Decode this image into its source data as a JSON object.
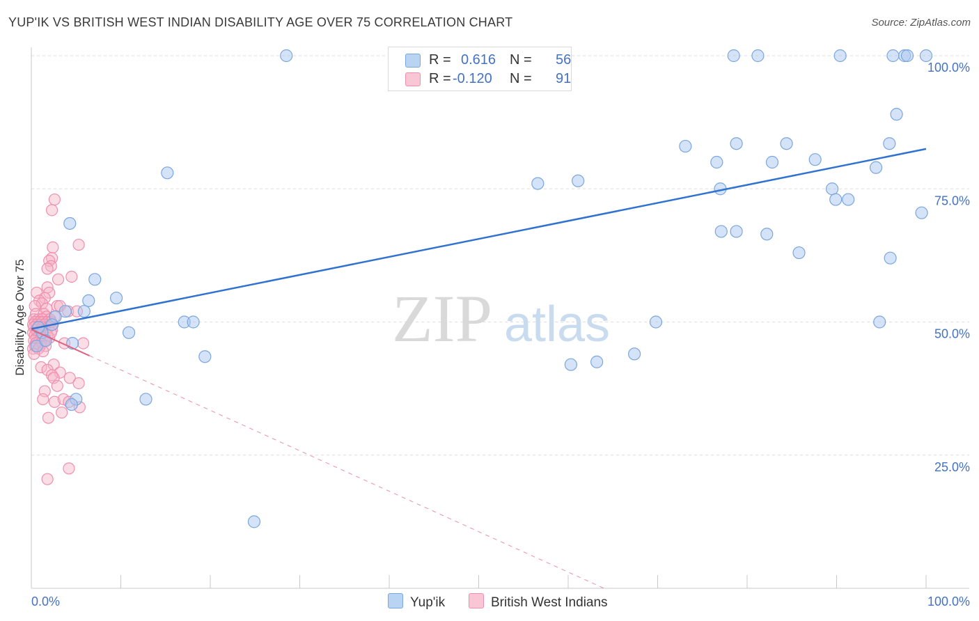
{
  "title": "YUP'IK VS BRITISH WEST INDIAN DISABILITY AGE OVER 75 CORRELATION CHART",
  "source": "Source: ZipAtlas.com",
  "watermark": {
    "zip": "ZIP",
    "atlas": "atlas"
  },
  "legend": {
    "series1": {
      "r_label": "R =",
      "r_value": "0.616",
      "n_label": "N =",
      "n_value": "56"
    },
    "series2": {
      "r_label": "R =",
      "r_value": "-0.120",
      "n_label": "N =",
      "n_value": "91"
    }
  },
  "bottom_legend": {
    "series1": "Yup'ik",
    "series2": "British West Indians"
  },
  "colors": {
    "blue_fill": "#a9c8f0",
    "blue_stroke": "#7aa6de",
    "blue_line": "#2f72cf",
    "pink_fill": "#f6b4c8",
    "pink_stroke": "#ee8fae",
    "pink_line": "#e4607f",
    "axis_text": "#4472c4",
    "grid": "#dddddd"
  },
  "chart_data": {
    "type": "scatter",
    "title": "YUP'IK VS BRITISH WEST INDIAN DISABILITY AGE OVER 75 CORRELATION CHART",
    "xlabel": "",
    "ylabel": "Disability Age Over 75",
    "xlim": [
      0,
      100
    ],
    "ylim": [
      0,
      102
    ],
    "x_tick_labels": [
      "0.0%",
      "100.0%"
    ],
    "y_tick_values": [
      25,
      50,
      75,
      100
    ],
    "y_tick_labels": [
      "25.0%",
      "50.0%",
      "75.0%",
      "100.0%"
    ],
    "series": [
      {
        "name": "Yup'ik",
        "r": 0.616,
        "n": 56,
        "points": [
          [
            28.5,
            100
          ],
          [
            78.5,
            100
          ],
          [
            81.2,
            100
          ],
          [
            90.4,
            100
          ],
          [
            96.3,
            100
          ],
          [
            97.6,
            100
          ],
          [
            97.9,
            100
          ],
          [
            100,
            100
          ],
          [
            96.7,
            89
          ],
          [
            95.9,
            83.5
          ],
          [
            73.1,
            83
          ],
          [
            84.4,
            83.5
          ],
          [
            78.8,
            83.5
          ],
          [
            87.6,
            80.5
          ],
          [
            76.6,
            80
          ],
          [
            82.8,
            80
          ],
          [
            15.2,
            78
          ],
          [
            56.6,
            76
          ],
          [
            61.1,
            76.5
          ],
          [
            77,
            75
          ],
          [
            94.4,
            79
          ],
          [
            89.5,
            75
          ],
          [
            91.3,
            73
          ],
          [
            89.9,
            73
          ],
          [
            99.5,
            70.5
          ],
          [
            4.3,
            68.5
          ],
          [
            77.1,
            67
          ],
          [
            78.8,
            67
          ],
          [
            82.2,
            66.5
          ],
          [
            85.8,
            63
          ],
          [
            96,
            62
          ],
          [
            7.1,
            58
          ],
          [
            9.5,
            54.5
          ],
          [
            6.4,
            54
          ],
          [
            3.8,
            52
          ],
          [
            2.7,
            51
          ],
          [
            5.9,
            52
          ],
          [
            17.1,
            50
          ],
          [
            18.1,
            50
          ],
          [
            69.8,
            50
          ],
          [
            94.8,
            50
          ],
          [
            10.9,
            48
          ],
          [
            1.2,
            48
          ],
          [
            4.6,
            46
          ],
          [
            0.6,
            45.5
          ],
          [
            19.4,
            43.5
          ],
          [
            60.3,
            42
          ],
          [
            63.2,
            42.5
          ],
          [
            67.4,
            44
          ],
          [
            12.8,
            35.5
          ],
          [
            5,
            35.5
          ],
          [
            4.5,
            34.5
          ],
          [
            24.9,
            12.5
          ],
          [
            0.8,
            49
          ],
          [
            1.6,
            46.5
          ],
          [
            2.3,
            49.5
          ]
        ],
        "trend": [
          [
            0,
            48.7
          ],
          [
            100,
            82.5
          ]
        ]
      },
      {
        "name": "British West Indians",
        "r": -0.12,
        "n": 91,
        "points": [
          [
            2.6,
            73
          ],
          [
            2.3,
            71
          ],
          [
            2.4,
            64
          ],
          [
            5.3,
            64.5
          ],
          [
            2.3,
            62
          ],
          [
            2,
            61.5
          ],
          [
            2.2,
            60.5
          ],
          [
            1.8,
            60
          ],
          [
            4.5,
            58.5
          ],
          [
            3,
            58
          ],
          [
            1.8,
            56.5
          ],
          [
            0.6,
            55.5
          ],
          [
            2,
            55.5
          ],
          [
            1.5,
            54.5
          ],
          [
            0.9,
            54
          ],
          [
            1.2,
            53.5
          ],
          [
            0.4,
            53
          ],
          [
            2.9,
            53
          ],
          [
            3.2,
            53
          ],
          [
            1.7,
            52.5
          ],
          [
            4.1,
            52
          ],
          [
            5.1,
            52
          ],
          [
            0.5,
            51.5
          ],
          [
            1.4,
            51.5
          ],
          [
            1.7,
            51
          ],
          [
            2.6,
            51
          ],
          [
            0.3,
            50.5
          ],
          [
            0.8,
            50.5
          ],
          [
            1.2,
            50.5
          ],
          [
            2.1,
            50.5
          ],
          [
            0.4,
            50
          ],
          [
            0.9,
            50
          ],
          [
            1.3,
            50
          ],
          [
            1.8,
            50
          ],
          [
            2.2,
            50
          ],
          [
            0.2,
            49.5
          ],
          [
            0.6,
            49.5
          ],
          [
            1,
            49.5
          ],
          [
            1.5,
            49.5
          ],
          [
            2.4,
            49.5
          ],
          [
            0.3,
            49
          ],
          [
            0.8,
            49
          ],
          [
            1.2,
            49
          ],
          [
            1.9,
            49
          ],
          [
            0.5,
            48.5
          ],
          [
            1,
            48.5
          ],
          [
            1.6,
            48.5
          ],
          [
            2.3,
            48.5
          ],
          [
            0.2,
            48
          ],
          [
            0.7,
            48
          ],
          [
            1.3,
            48
          ],
          [
            0.4,
            47.5
          ],
          [
            0.9,
            47.5
          ],
          [
            1.8,
            47.5
          ],
          [
            0.6,
            47
          ],
          [
            1.2,
            47
          ],
          [
            2,
            47
          ],
          [
            0.3,
            46.5
          ],
          [
            0.9,
            46.5
          ],
          [
            1.5,
            46.5
          ],
          [
            0.5,
            46
          ],
          [
            1.1,
            46
          ],
          [
            3.7,
            46
          ],
          [
            5.8,
            46
          ],
          [
            0.4,
            45.5
          ],
          [
            1,
            45.5
          ],
          [
            1.6,
            45.5
          ],
          [
            0.2,
            45
          ],
          [
            0.8,
            45
          ],
          [
            1.3,
            44.5
          ],
          [
            0.3,
            44
          ],
          [
            2.5,
            42
          ],
          [
            1.1,
            41.5
          ],
          [
            1.8,
            41
          ],
          [
            3.2,
            40.5
          ],
          [
            2.3,
            40
          ],
          [
            4.3,
            39.5
          ],
          [
            2.5,
            39.5
          ],
          [
            5.3,
            38.5
          ],
          [
            2.9,
            38
          ],
          [
            1.5,
            37
          ],
          [
            1.3,
            35.5
          ],
          [
            2.6,
            35
          ],
          [
            3.6,
            35.5
          ],
          [
            4.2,
            35
          ],
          [
            5.4,
            34
          ],
          [
            3.4,
            33
          ],
          [
            1.9,
            32
          ],
          [
            4.2,
            22.5
          ],
          [
            1.8,
            20.5
          ],
          [
            2.2,
            48
          ]
        ],
        "trend": [
          [
            0,
            48.6
          ],
          [
            64,
            0
          ]
        ]
      }
    ]
  }
}
